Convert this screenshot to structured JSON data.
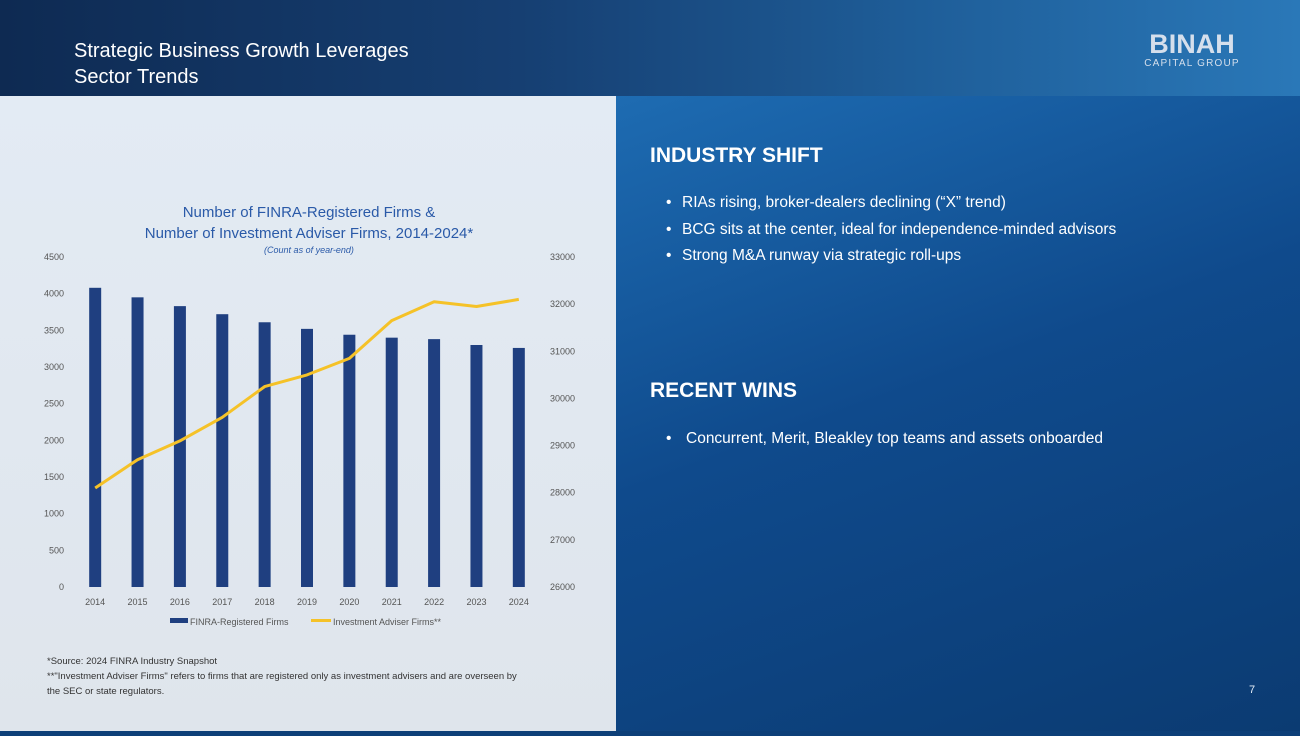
{
  "slide": {
    "title_line1": "Strategic Business Growth Leverages",
    "title_line2": "Sector Trends",
    "logo_main": "BINAH",
    "logo_sub": "CAPITAL GROUP",
    "page_number": "7"
  },
  "right_panel": {
    "industry_heading": "INDUSTRY SHIFT",
    "industry_bullets": [
      "RIAs rising, broker-dealers declining (“X” trend)",
      "BCG sits at the center, ideal for independence-minded advisors",
      "Strong M&A runway via strategic  roll-ups"
    ],
    "wins_heading": "RECENT WINS",
    "wins_bullets": [
      "Concurrent, Merit, Bleakley top teams and assets onboarded"
    ],
    "bullet_glyph": "•"
  },
  "footnotes": {
    "line1": "*Source: 2024 FINRA Industry Snapshot",
    "line2": "**\"Investment Adviser Firms\" refers to firms that are registered only as investment advisers and are overseen by",
    "line3": "the SEC or state regulators."
  },
  "colors": {
    "bar": "#1f3f80",
    "line": "#f5c228",
    "chart_title": "#2a5aa8",
    "accent_blue": "#1c68ae"
  },
  "chart_data": {
    "type": "bar",
    "title_line1": "Number of FINRA-Registered Firms &",
    "title_line2": "Number of Investment Adviser Firms, 2014-2024*",
    "subtitle": "(Count as of year-end)",
    "categories": [
      "2014",
      "2015",
      "2016",
      "2017",
      "2018",
      "2019",
      "2020",
      "2021",
      "2022",
      "2023",
      "2024"
    ],
    "series": [
      {
        "name": "FINRA-Registered Firms",
        "type": "bar",
        "axis": "left",
        "values": [
          4080,
          3950,
          3830,
          3720,
          3610,
          3520,
          3440,
          3400,
          3380,
          3300,
          3260
        ]
      },
      {
        "name": "Investment Adviser Firms**",
        "type": "line",
        "axis": "right",
        "values": [
          28100,
          28700,
          29100,
          29600,
          30250,
          30500,
          30850,
          31650,
          32050,
          31950,
          32100
        ]
      }
    ],
    "left_axis": {
      "min": 0,
      "max": 4500,
      "ticks": [
        "0",
        "500",
        "1000",
        "1500",
        "2000",
        "2500",
        "3000",
        "3500",
        "4000",
        "4500"
      ]
    },
    "right_axis": {
      "min": 26000,
      "max": 33000,
      "ticks": [
        "26000",
        "27000",
        "28000",
        "29000",
        "30000",
        "31000",
        "32000",
        "33000"
      ]
    },
    "grid": false,
    "legend_position": "bottom"
  }
}
